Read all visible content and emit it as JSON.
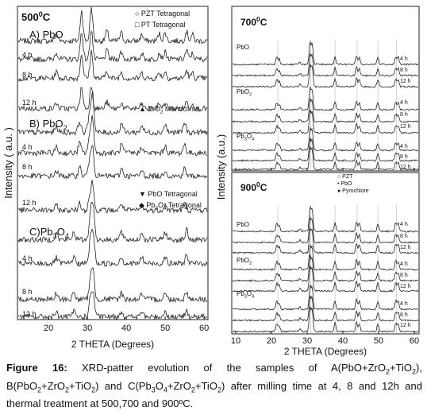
{
  "left": {
    "temperature": [
      "500",
      "0",
      "C"
    ],
    "legend": [
      [
        "○ PZT Tetragonal"
      ],
      [
        "□ PT  Tetragonal"
      ]
    ],
    "groups": [
      {
        "label": [
          "A) PbO"
        ],
        "hours": [
          "4 h",
          "8 h",
          "12 h"
        ],
        "legend": [
          [
            "▲  ZrO",
            "2",
            " Monoclinic"
          ]
        ]
      },
      {
        "label": [
          "B) PbO",
          "2"
        ],
        "hours": [
          "4 h",
          "8 h",
          "12 h"
        ],
        "legend": [
          [
            "▼  PbO  Tetragonal"
          ],
          [
            "◆  Pb",
            "3",
            "O",
            "4",
            " Tetragonal"
          ]
        ]
      },
      {
        "label": [
          "C)Pb",
          "3",
          "O",
          "4"
        ],
        "hours": [
          "4 h",
          "8 h",
          "12 h"
        ],
        "legend": []
      }
    ],
    "xticks": [
      "20",
      "30",
      "40",
      "50",
      "60"
    ],
    "xlabel": "2 THETA (Degrees)",
    "ylabel": "Intensity ( a.u. )"
  },
  "right_top": {
    "temperature": [
      "700",
      "0",
      "C"
    ],
    "groups": [
      {
        "label": [
          "PbO"
        ],
        "hours": [
          "4 h",
          "8 h",
          "12 h"
        ]
      },
      {
        "label": [
          "PbO",
          "2"
        ],
        "hours": [
          "4 h",
          "8 h",
          "12 h"
        ]
      },
      {
        "label": [
          "Pb",
          "3",
          "O",
          "4"
        ],
        "hours": [
          "4 h",
          "8 h",
          "12 h"
        ]
      }
    ]
  },
  "right_bottom": {
    "temperature": [
      "900",
      "0",
      "C"
    ],
    "legend": [
      [
        "○  PZT"
      ],
      [
        "•  PbO"
      ],
      [
        "●  Pyrochlore"
      ]
    ],
    "groups": [
      {
        "label": [
          "PbO"
        ],
        "hours": [
          "4 h",
          "8 h",
          "12 h"
        ]
      },
      {
        "label": [
          "PbO",
          "2"
        ],
        "hours": [
          "4 h",
          "8 h",
          "12 h"
        ]
      },
      {
        "label": [
          "Pb",
          "3",
          "O",
          "4"
        ],
        "hours": [
          "4 h",
          "8 h",
          "12 h"
        ]
      }
    ],
    "xticks": [
      "10",
      "20",
      "30",
      "40",
      "50",
      "60"
    ],
    "xlabel": "2 THETA (Degrees)",
    "ylabel": "Intensity (a.u.)"
  },
  "caption": {
    "lead": "Figure 16:",
    "parts": [
      " XRD-patter evolution of the samples of A(PbO+ZrO",
      "2",
      "+TiO",
      "2",
      "), B(PbO",
      "2",
      "+ZrO",
      "2",
      "+TiO",
      "2",
      ") and C(Pb",
      "3",
      "O",
      "4",
      "+ZrO",
      "2",
      "+TiO",
      "2",
      ") after milling time at 4, 8 and 12h and thermal treatment at 500,700 and 900ºC."
    ]
  }
}
